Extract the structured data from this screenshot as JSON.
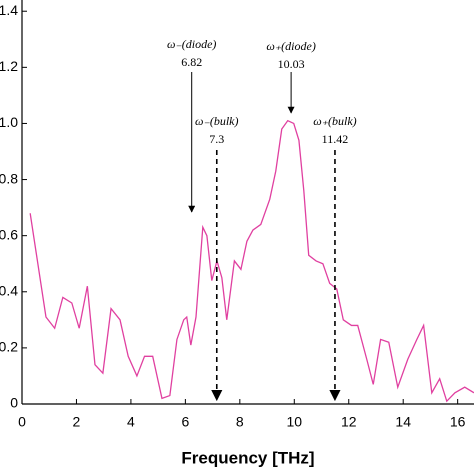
{
  "chart_data": {
    "type": "line",
    "x_label": "Frequency [THz]",
    "x": [
      0.3,
      0.88,
      1.2,
      1.5,
      1.83,
      2.1,
      2.4,
      2.68,
      2.97,
      3.27,
      3.6,
      3.9,
      4.22,
      4.5,
      4.8,
      5.14,
      5.43,
      5.69,
      5.94,
      6.05,
      6.2,
      6.39,
      6.64,
      6.79,
      6.97,
      7.16,
      7.34,
      7.52,
      7.8,
      8.04,
      8.26,
      8.48,
      8.77,
      9.1,
      9.32,
      9.54,
      9.76,
      9.98,
      10.17,
      10.35,
      10.53,
      10.8,
      11.05,
      11.3,
      11.56,
      11.8,
      12.1,
      12.33,
      12.66,
      12.9,
      13.17,
      13.47,
      13.8,
      14.17,
      14.5,
      14.75,
      15.05,
      15.34,
      15.6,
      15.9,
      16.26,
      16.6
    ],
    "series": [
      {
        "color": "#e040a0",
        "values": [
          0.68,
          0.31,
          0.27,
          0.38,
          0.36,
          0.27,
          0.42,
          0.14,
          0.11,
          0.34,
          0.3,
          0.17,
          0.1,
          0.17,
          0.17,
          0.02,
          0.03,
          0.23,
          0.3,
          0.31,
          0.21,
          0.31,
          0.63,
          0.6,
          0.44,
          0.51,
          0.45,
          0.3,
          0.51,
          0.48,
          0.58,
          0.62,
          0.64,
          0.73,
          0.83,
          0.98,
          1.01,
          1.0,
          0.94,
          0.76,
          0.53,
          0.51,
          0.5,
          0.43,
          0.41,
          0.3,
          0.28,
          0.28,
          0.16,
          0.07,
          0.23,
          0.22,
          0.06,
          0.16,
          0.23,
          0.28,
          0.04,
          0.09,
          0.01,
          0.04,
          0.06,
          0.04
        ]
      }
    ],
    "xlim": [
      0,
      16.6
    ],
    "ylim": [
      0,
      1.44
    ],
    "xticks": [
      0,
      2,
      4,
      6,
      8,
      10,
      12,
      14,
      16
    ],
    "yticks": [
      0,
      {
        "value": 0.2,
        "label": "0.2"
      },
      {
        "value": 0.4,
        "label": "0.4"
      },
      {
        "value": 0.6,
        "label": "0.6"
      },
      {
        "value": 0.8,
        "label": "0.8"
      },
      {
        "value": 1.0,
        "label": "1.0"
      },
      {
        "value": 1.2,
        "label": "1.2"
      },
      {
        "value": 1.4,
        "label": "1.4"
      }
    ],
    "annotations": [
      {
        "label": "ω₋(diode)",
        "value": 6.82,
        "style": "solid"
      },
      {
        "label": "ω₋(bulk)",
        "value": 7.3,
        "style": "dashed"
      },
      {
        "label": "ω₊(diode)",
        "value": 10.03,
        "style": "solid"
      },
      {
        "label": "ω₊(bulk)",
        "value": 11.42,
        "style": "dashed"
      }
    ]
  }
}
